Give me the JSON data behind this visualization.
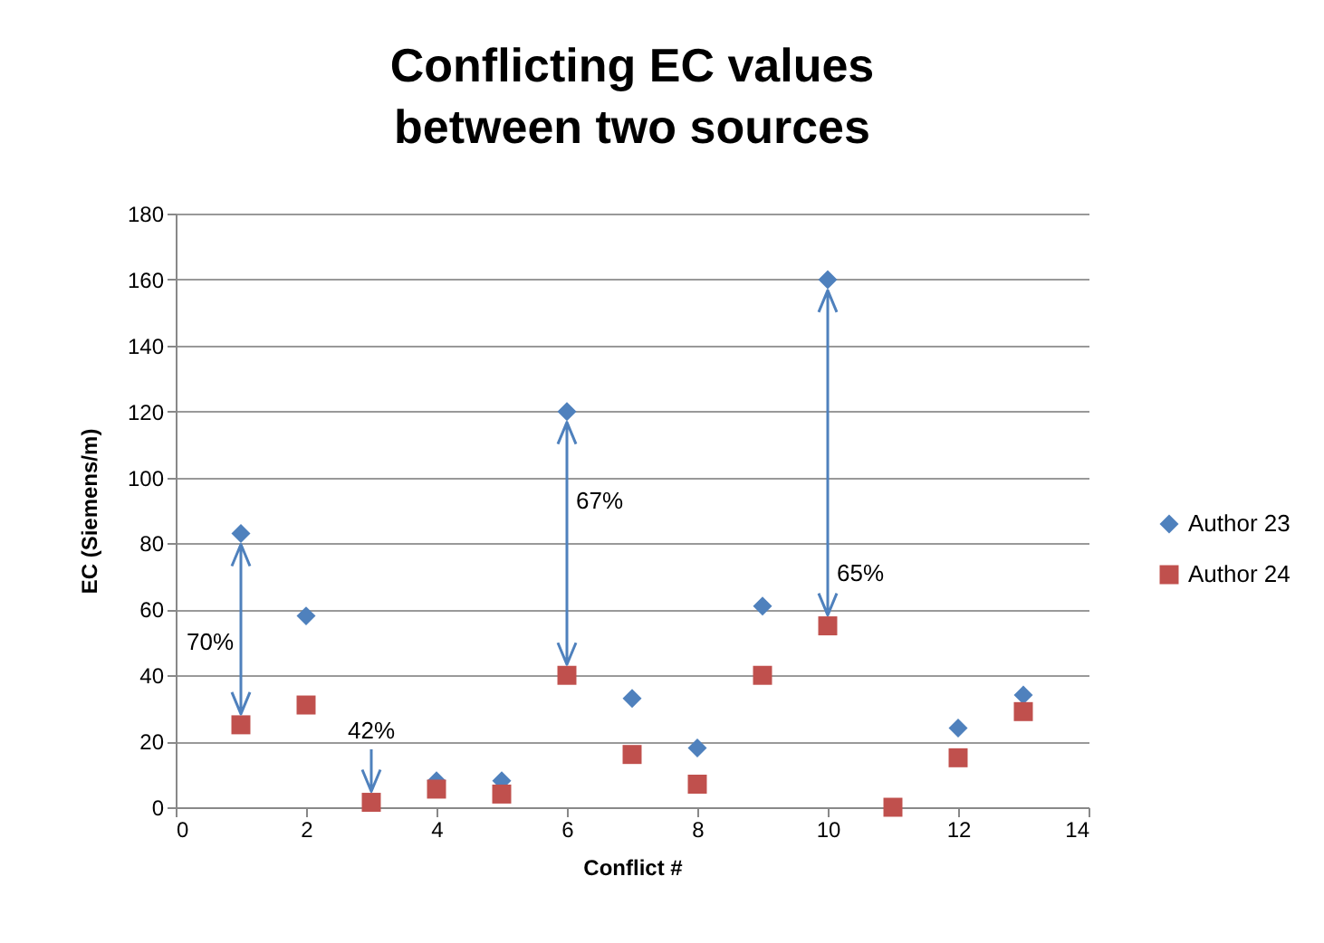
{
  "chart_data": {
    "type": "scatter",
    "title": "Conflicting EC values\nbetween two sources",
    "xlabel": "Conflict #",
    "ylabel": "EC (Siemens/m)",
    "x": [
      1,
      2,
      3,
      4,
      5,
      6,
      7,
      8,
      9,
      10,
      11,
      12,
      13
    ],
    "series": [
      {
        "name": "Author 23",
        "color": "#4f81bd",
        "marker": "diamond",
        "values": [
          83,
          58,
          null,
          8,
          8,
          120,
          33,
          18,
          61,
          160,
          null,
          24,
          34
        ]
      },
      {
        "name": "Author 24",
        "color": "#c0504d",
        "marker": "square",
        "values": [
          25,
          31,
          1.5,
          5.5,
          4,
          40,
          16,
          7,
          40,
          55,
          0,
          15,
          29
        ]
      }
    ],
    "annotations": [
      "70%",
      {
        "text": "42%",
        "x": 3,
        "y": 1.5
      },
      "67%",
      {
        "text": "65%",
        "x": 10,
        "y": 55
      }
    ],
    "xlim": [
      0,
      14
    ],
    "xticks": [
      0,
      2,
      4,
      6,
      8,
      10,
      12,
      14
    ],
    "ylim": [
      0,
      180
    ],
    "yticks": [
      0,
      20,
      40,
      60,
      80,
      100,
      120,
      140,
      160,
      180
    ],
    "grid": "y",
    "legend": "right"
  }
}
